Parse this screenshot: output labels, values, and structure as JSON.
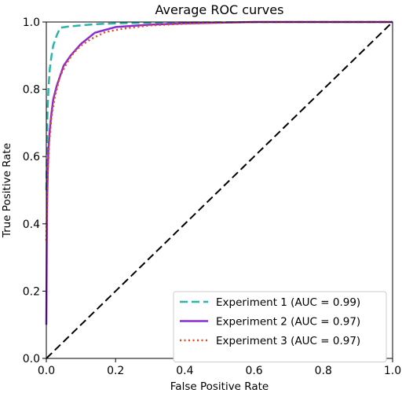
{
  "chart_data": {
    "type": "line",
    "title": "Average ROC curves",
    "xlabel": "False Positive Rate",
    "ylabel": "True Positive Rate",
    "xlim": [
      0,
      1
    ],
    "ylim": [
      0,
      1
    ],
    "x_ticks": [
      0.0,
      0.2,
      0.4,
      0.6,
      0.8,
      1.0
    ],
    "y_ticks": [
      0.0,
      0.2,
      0.4,
      0.6,
      0.8,
      1.0
    ],
    "x_tick_labels": [
      "0.0",
      "0.2",
      "0.4",
      "0.6",
      "0.8",
      "1.0"
    ],
    "y_tick_labels": [
      "0.0",
      "0.2",
      "0.4",
      "0.6",
      "0.8",
      "1.0"
    ],
    "grid": false,
    "legend_position": "lower-right",
    "series": [
      {
        "name": "Experiment 1 (AUC = 0.99)",
        "color": "#2ab5a8",
        "style": "dashed",
        "x": [
          0.0,
          0.003,
          0.006,
          0.01,
          0.015,
          0.02,
          0.03,
          0.04,
          0.06,
          0.1,
          0.15,
          0.2,
          0.3,
          0.5,
          0.7,
          1.0
        ],
        "y": [
          0.5,
          0.72,
          0.8,
          0.86,
          0.9,
          0.93,
          0.96,
          0.983,
          0.986,
          0.99,
          0.994,
          0.996,
          0.998,
          0.999,
          1.0,
          1.0
        ]
      },
      {
        "name": "Experiment 2 (AUC = 0.97)",
        "color": "#8a2bd6",
        "style": "solid",
        "x": [
          0.0,
          0.002,
          0.004,
          0.006,
          0.01,
          0.015,
          0.02,
          0.03,
          0.04,
          0.05,
          0.07,
          0.1,
          0.14,
          0.2,
          0.3,
          0.4,
          0.5,
          0.6,
          0.8,
          1.0
        ],
        "y": [
          0.1,
          0.45,
          0.55,
          0.62,
          0.68,
          0.73,
          0.77,
          0.81,
          0.84,
          0.87,
          0.9,
          0.935,
          0.968,
          0.985,
          0.992,
          0.996,
          0.998,
          1.0,
          1.0,
          1.0
        ]
      },
      {
        "name": "Experiment 3 (AUC = 0.97)",
        "color": "#e8491d",
        "style": "dotted",
        "x": [
          0.0,
          0.004,
          0.008,
          0.015,
          0.025,
          0.04,
          0.06,
          0.08,
          0.1,
          0.13,
          0.17,
          0.22,
          0.3,
          0.4,
          0.5,
          0.6,
          0.8,
          1.0
        ],
        "y": [
          0.35,
          0.55,
          0.64,
          0.72,
          0.78,
          0.84,
          0.88,
          0.91,
          0.93,
          0.95,
          0.97,
          0.98,
          0.99,
          0.995,
          0.998,
          1.0,
          1.0,
          1.0
        ]
      },
      {
        "name": "",
        "color": "#000000",
        "style": "dashed",
        "x": [
          0,
          1
        ],
        "y": [
          0,
          1
        ]
      }
    ]
  }
}
